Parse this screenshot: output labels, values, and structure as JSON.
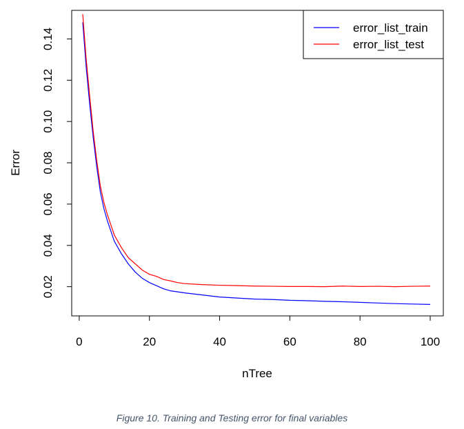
{
  "chart_data": {
    "type": "line",
    "xlabel": "nTree",
    "ylabel": "Error",
    "xlim": [
      1,
      100
    ],
    "ylim": [
      0.0112,
      0.1525
    ],
    "xticks": [
      "0",
      "20",
      "40",
      "60",
      "80",
      "100"
    ],
    "yticks": [
      "0.02",
      "0.04",
      "0.06",
      "0.08",
      "0.10",
      "0.12",
      "0.14"
    ],
    "grid": false,
    "legend_position": "top-right",
    "series": [
      {
        "name": "error_list_train",
        "color": "#0000ff",
        "x": [
          1,
          2,
          3,
          4,
          5,
          6,
          7,
          8,
          9,
          10,
          12,
          14,
          16,
          18,
          20,
          22,
          24,
          26,
          28,
          30,
          35,
          40,
          45,
          50,
          55,
          60,
          65,
          70,
          75,
          80,
          85,
          90,
          95,
          100
        ],
        "y": [
          0.148,
          0.126,
          0.108,
          0.092,
          0.078,
          0.066,
          0.058,
          0.052,
          0.047,
          0.042,
          0.036,
          0.031,
          0.027,
          0.024,
          0.022,
          0.0205,
          0.019,
          0.018,
          0.0175,
          0.017,
          0.016,
          0.015,
          0.0145,
          0.014,
          0.0138,
          0.0134,
          0.0132,
          0.0129,
          0.0127,
          0.0124,
          0.0121,
          0.0118,
          0.0116,
          0.0114
        ]
      },
      {
        "name": "error_list_test",
        "color": "#ff0000",
        "x": [
          1,
          2,
          3,
          4,
          5,
          6,
          7,
          8,
          9,
          10,
          12,
          14,
          16,
          18,
          20,
          22,
          24,
          26,
          28,
          30,
          35,
          40,
          45,
          50,
          55,
          60,
          65,
          70,
          75,
          80,
          85,
          90,
          95,
          100
        ],
        "y": [
          0.152,
          0.13,
          0.112,
          0.095,
          0.081,
          0.069,
          0.061,
          0.055,
          0.05,
          0.045,
          0.039,
          0.034,
          0.031,
          0.028,
          0.026,
          0.025,
          0.0235,
          0.0228,
          0.022,
          0.0215,
          0.021,
          0.0207,
          0.0205,
          0.0203,
          0.0202,
          0.0201,
          0.0201,
          0.02,
          0.0203,
          0.0201,
          0.0202,
          0.02,
          0.0202,
          0.0203
        ]
      }
    ]
  },
  "caption": "Figure 10. Training and Testing error for final variables"
}
